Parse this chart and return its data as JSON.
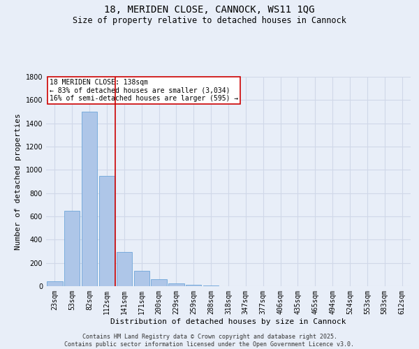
{
  "title_line1": "18, MERIDEN CLOSE, CANNOCK, WS11 1QG",
  "title_line2": "Size of property relative to detached houses in Cannock",
  "xlabel": "Distribution of detached houses by size in Cannock",
  "ylabel": "Number of detached properties",
  "footnote_line1": "Contains HM Land Registry data © Crown copyright and database right 2025.",
  "footnote_line2": "Contains public sector information licensed under the Open Government Licence v3.0.",
  "annotation_line1": "18 MERIDEN CLOSE: 138sqm",
  "annotation_line2": "← 83% of detached houses are smaller (3,034)",
  "annotation_line3": "16% of semi-detached houses are larger (595) →",
  "bar_color": "#aec6e8",
  "bar_edge_color": "#5b9bd5",
  "grid_color": "#d0d8e8",
  "background_color": "#e8eef8",
  "vline_color": "#cc0000",
  "annotation_box_edge_color": "#cc0000",
  "annotation_box_face_color": "#ffffff",
  "categories": [
    "23sqm",
    "53sqm",
    "82sqm",
    "112sqm",
    "141sqm",
    "171sqm",
    "200sqm",
    "229sqm",
    "259sqm",
    "288sqm",
    "318sqm",
    "347sqm",
    "377sqm",
    "406sqm",
    "435sqm",
    "465sqm",
    "494sqm",
    "524sqm",
    "553sqm",
    "583sqm",
    "612sqm"
  ],
  "values": [
    40,
    650,
    1500,
    950,
    295,
    130,
    62,
    25,
    12,
    5,
    0,
    0,
    0,
    0,
    0,
    0,
    0,
    0,
    0,
    0,
    0
  ],
  "ylim": [
    0,
    1800
  ],
  "yticks": [
    0,
    200,
    400,
    600,
    800,
    1000,
    1200,
    1400,
    1600,
    1800
  ],
  "vline_x": 3.5,
  "title_fontsize": 10,
  "subtitle_fontsize": 8.5,
  "tick_fontsize": 7,
  "label_fontsize": 8,
  "annotation_fontsize": 7,
  "footnote_fontsize": 6
}
